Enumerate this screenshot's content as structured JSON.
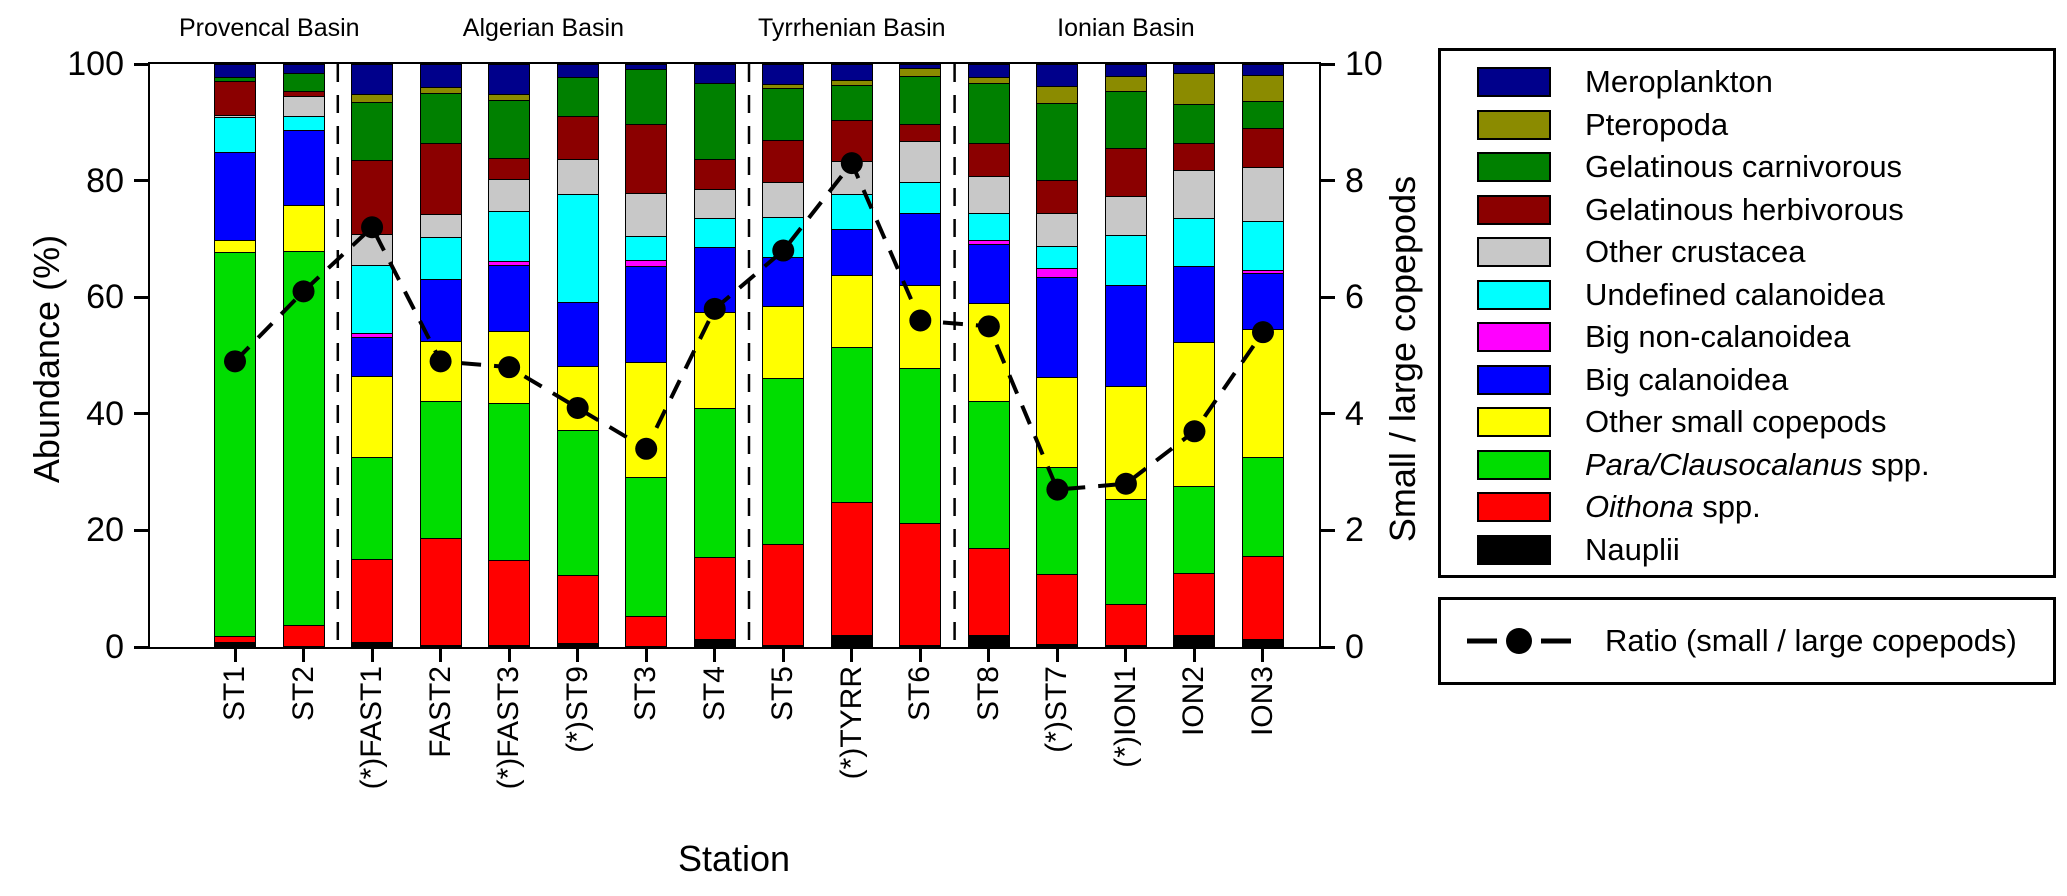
{
  "figure": {
    "background": "#FFFFFF",
    "y_left": {
      "title": "Abundance (%)",
      "ticks": [
        0,
        20,
        40,
        60,
        80,
        100
      ],
      "range": [
        0,
        100
      ]
    },
    "y_right": {
      "title": "Small / large copepods",
      "ticks": [
        0,
        2,
        4,
        6,
        8,
        10
      ],
      "range": [
        0,
        10
      ]
    },
    "x_axis": {
      "title": "Station"
    },
    "basin_labels": [
      {
        "label": "Provencal Basin",
        "from_station": 0,
        "to_station": 1
      },
      {
        "label": "Algerian Basin",
        "from_station": 2,
        "to_station": 7
      },
      {
        "label": "Tyrrhenian Basin",
        "from_station": 8,
        "to_station": 10
      },
      {
        "label": "Ionian Basin",
        "from_station": 11,
        "to_station": 15
      }
    ],
    "separators_after_station": [
      1,
      7,
      10
    ]
  },
  "chart_data": {
    "type": "bar",
    "subtype": "100%-stacked bars with dashed ratio line on secondary axis",
    "title": "",
    "xlabel": "Station",
    "ylabel_left": "Abundance (%)",
    "ylabel_right": "Small / large copepods",
    "ylim_left": [
      0,
      100
    ],
    "ylim_right": [
      0,
      10
    ],
    "grid": false,
    "legend_position": "right",
    "categories": [
      "ST1",
      "ST2",
      "(*)FAST1",
      "FAST2",
      "(*)FAST3",
      "(*)ST9",
      "ST3",
      "ST4",
      "ST5",
      "(*)TYRR",
      "ST6",
      "ST8",
      "(*)ST7",
      "(*)ION1",
      "ION2",
      "ION3"
    ],
    "series": [
      {
        "name": "Nauplii",
        "color": "#000000",
        "values": [
          1.0,
          0.3,
          1.0,
          0.5,
          0.5,
          0.9,
          0.3,
          1.6,
          0.5,
          2.2,
          0.5,
          2.2,
          0.6,
          0.5,
          2.2,
          1.5
        ]
      },
      {
        "name": "Oithona spp.",
        "color": "#FF0000",
        "values": [
          1.0,
          3.7,
          14.3,
          18.4,
          14.5,
          11.7,
          5.2,
          14.0,
          17.4,
          22.8,
          20.9,
          15.0,
          12.0,
          7.0,
          10.6,
          14.2
        ]
      },
      {
        "name": "Para/Clausocalanus spp.",
        "color": "#00DD00",
        "values": [
          66.0,
          64.0,
          17.5,
          23.4,
          27.0,
          24.8,
          23.8,
          25.5,
          28.4,
          26.6,
          26.6,
          25.2,
          18.4,
          18.0,
          14.9,
          17.0
        ]
      },
      {
        "name": "Other small copepods",
        "color": "#FFFF00",
        "values": [
          2.0,
          8.0,
          13.8,
          10.3,
          12.3,
          11.0,
          19.8,
          16.6,
          12.3,
          12.3,
          14.3,
          16.7,
          15.4,
          19.5,
          24.8,
          22.0
        ]
      },
      {
        "name": "Big calanoidea",
        "color": "#0000FF",
        "values": [
          15.0,
          12.8,
          6.7,
          10.7,
          11.4,
          11.0,
          16.4,
          11.1,
          8.5,
          7.9,
          12.3,
          10.2,
          17.3,
          17.3,
          13.1,
          9.6
        ]
      },
      {
        "name": "Big non-calanoidea",
        "color": "#FF00FF",
        "values": [
          0,
          0,
          0.7,
          0,
          0.7,
          0,
          1.0,
          0,
          0,
          0,
          0,
          0.7,
          1.4,
          0,
          0,
          0.5
        ]
      },
      {
        "name": "Undefined calanoidea",
        "color": "#00FFFF",
        "values": [
          6.0,
          2.4,
          11.7,
          7.2,
          8.5,
          18.4,
          4.2,
          4.9,
          6.8,
          6.0,
          5.3,
          4.6,
          3.9,
          8.5,
          8.2,
          8.5
        ]
      },
      {
        "name": "Other crustacea",
        "color": "#C8C8C8",
        "values": [
          0.5,
          3.5,
          5.3,
          4.0,
          5.6,
          6.0,
          7.4,
          5.0,
          6.0,
          5.8,
          7.1,
          6.4,
          5.6,
          6.8,
          8.1,
          9.2
        ]
      },
      {
        "name": "Gelatinous herbivorous",
        "color": "#8B0000",
        "values": [
          5.8,
          0.9,
          12.7,
          12.2,
          3.5,
          7.4,
          11.7,
          5.2,
          7.2,
          7.0,
          2.9,
          5.7,
          5.7,
          8.1,
          4.7,
          6.7
        ]
      },
      {
        "name": "Gelatinous carnivorous",
        "color": "#008000",
        "values": [
          0.7,
          3.0,
          10.0,
          8.5,
          10.0,
          6.8,
          9.5,
          13.0,
          8.9,
          6.0,
          8.2,
          10.2,
          13.2,
          9.9,
          6.7,
          4.7
        ]
      },
      {
        "name": "Pteropoda",
        "color": "#8B8B00",
        "values": [
          0,
          0,
          1.3,
          1.0,
          1.0,
          0,
          0,
          0,
          0.8,
          0.8,
          1.3,
          1.1,
          2.9,
          2.5,
          5.3,
          4.3
        ]
      },
      {
        "name": "Meroplankton",
        "color": "#00008B",
        "values": [
          2.0,
          1.4,
          5.0,
          3.8,
          5.0,
          2.0,
          0.7,
          3.1,
          3.2,
          2.6,
          0.6,
          2.0,
          3.6,
          1.9,
          1.4,
          1.8
        ]
      }
    ],
    "line_series": {
      "name": "Ratio (small / large copepods)",
      "axis": "right",
      "color": "#000000",
      "marker": "filled-circle",
      "linestyle": "dashed",
      "values": [
        4.9,
        6.1,
        7.2,
        4.9,
        4.8,
        4.1,
        3.4,
        5.8,
        6.8,
        8.3,
        5.6,
        5.5,
        2.7,
        2.8,
        3.7,
        5.4
      ]
    }
  },
  "legend": {
    "items": [
      {
        "italic_part": "",
        "plain_part": "Meroplankton",
        "color": "#00008B"
      },
      {
        "italic_part": "",
        "plain_part": "Pteropoda",
        "color": "#8B8B00"
      },
      {
        "italic_part": "",
        "plain_part": "Gelatinous carnivorous",
        "color": "#008000"
      },
      {
        "italic_part": "",
        "plain_part": "Gelatinous herbivorous",
        "color": "#8B0000"
      },
      {
        "italic_part": "",
        "plain_part": "Other crustacea",
        "color": "#C8C8C8"
      },
      {
        "italic_part": "",
        "plain_part": "Undefined calanoidea",
        "color": "#00FFFF"
      },
      {
        "italic_part": "",
        "plain_part": "Big  non-calanoidea",
        "color": "#FF00FF"
      },
      {
        "italic_part": "",
        "plain_part": "Big calanoidea",
        "color": "#0000FF"
      },
      {
        "italic_part": "",
        "plain_part": "Other small copepods",
        "color": "#FFFF00"
      },
      {
        "italic_part": "Para/Clausocalanus",
        "plain_part": " spp.",
        "color": "#00DD00"
      },
      {
        "italic_part": "Oithona",
        "plain_part": " spp.",
        "color": "#FF0000"
      },
      {
        "italic_part": "",
        "plain_part": "Nauplii",
        "color": "#000000"
      }
    ],
    "ratio_item": {
      "label": "Ratio (small / large copepods)"
    }
  }
}
